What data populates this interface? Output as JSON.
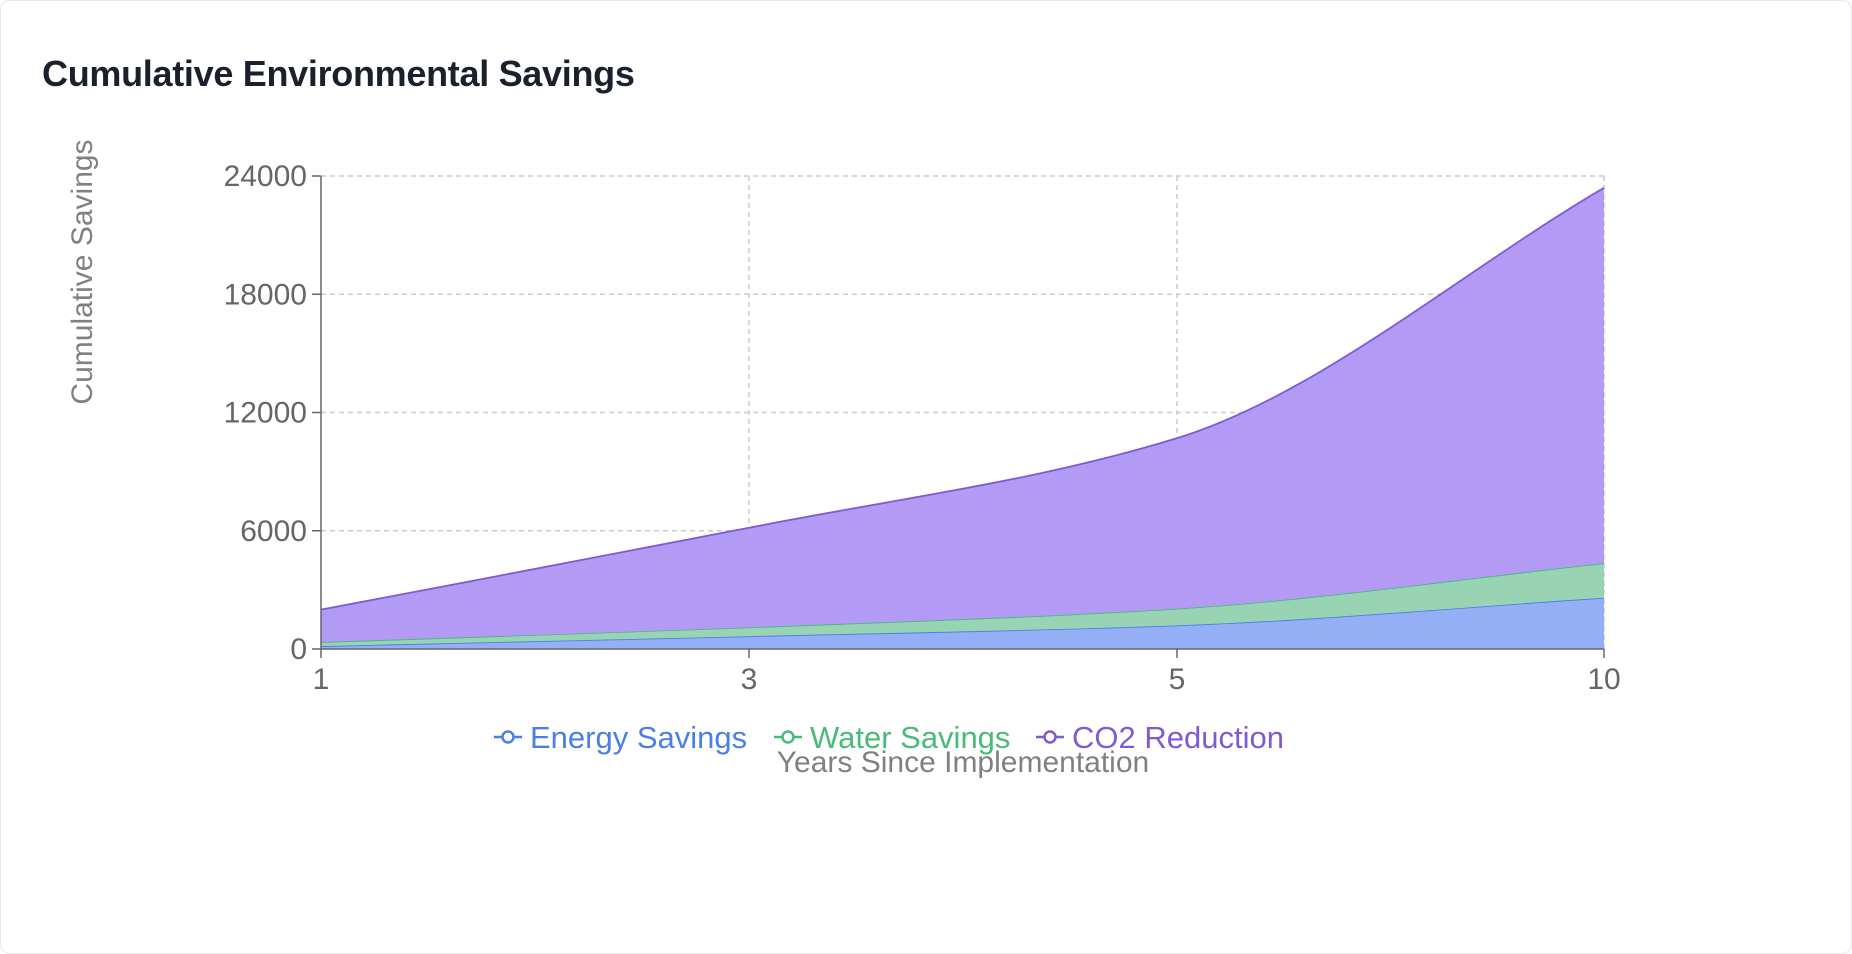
{
  "card": {
    "title": "Cumulative Environmental Savings"
  },
  "chart_data": {
    "type": "area",
    "stacked": true,
    "title": "Cumulative Environmental Savings",
    "xlabel": "Years Since Implementation",
    "ylabel": "Cumulative Savings",
    "x": [
      "1",
      "3",
      "5",
      "10"
    ],
    "ylim": [
      0,
      24000
    ],
    "yticks": [
      0,
      6000,
      12000,
      18000,
      24000
    ],
    "grid": true,
    "legend_position": "bottom",
    "series": [
      {
        "name": "Energy Savings",
        "values": [
          150,
          650,
          1200,
          2600
        ],
        "color": "#4a7fe8",
        "fill": "#94aff5"
      },
      {
        "name": "Water Savings",
        "values": [
          200,
          450,
          850,
          1750
        ],
        "color": "#48bb78",
        "fill": "#98d4b4"
      },
      {
        "name": "CO2 Reduction",
        "values": [
          1650,
          5050,
          8650,
          19050
        ],
        "color": "#805ad5",
        "fill": "#b39af5"
      }
    ]
  }
}
